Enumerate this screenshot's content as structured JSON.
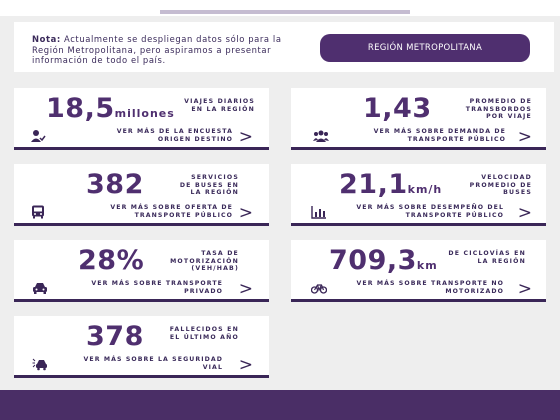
{
  "notice": {
    "label": "Nota:",
    "text": "Actualmente se despliegan datos sólo para la Región Metropolitana, pero aspiramos a presentar información de todo el país.",
    "button": "REGIÓN METROPOLITANA"
  },
  "cards": [
    {
      "value": "18,5",
      "unit": "millones",
      "description": "VIAJES DIARIOS EN LA REGIÓN",
      "link": "VER MÁS DE LA ENCUESTA ORIGEN DESTINO",
      "icon": "person-check-icon"
    },
    {
      "value": "1,43",
      "unit": "",
      "description": "PROMEDIO DE TRANSBORDOS POR VIAJE",
      "link": "VER MÁS SOBRE DEMANDA DE TRANSPORTE PÚBLICO",
      "icon": "people-group-icon"
    },
    {
      "value": "382",
      "unit": "",
      "description": "SERVICIOS DE BUSES EN LA REGIÓN",
      "link": "VER MÁS SOBRE OFERTA DE TRANSPORTE PÚBLICO",
      "icon": "bus-icon"
    },
    {
      "value": "21,1",
      "unit": "km/h",
      "description": "VELOCIDAD PROMEDIO DE BUSES",
      "link": "VER MÁS SOBRE DESEMPEÑO DEL TRANSPORTE PÚBLICO",
      "icon": "bar-chart-icon"
    },
    {
      "value": "28%",
      "unit": "",
      "description": "TASA DE MOTORIZACIÓN (veh/hab)",
      "link": "VER MÁS SOBRE TRANSPORTE PRIVADO",
      "icon": "car-icon"
    },
    {
      "value": "709,3",
      "unit": "km",
      "description": "DE CICLOVÍAS EN LA REGIÓN",
      "link": "VER MÁS SOBRE TRANSPORTE NO MOTORIZADO",
      "icon": "bicycle-icon"
    },
    {
      "value": "378",
      "unit": "",
      "description": "FALLECIDOS EN EL ÚLTIMO AÑO",
      "link": "VER MÁS SOBRE LA SEGURIDAD VIAL",
      "icon": "car-crash-icon"
    }
  ],
  "chevron": ">"
}
